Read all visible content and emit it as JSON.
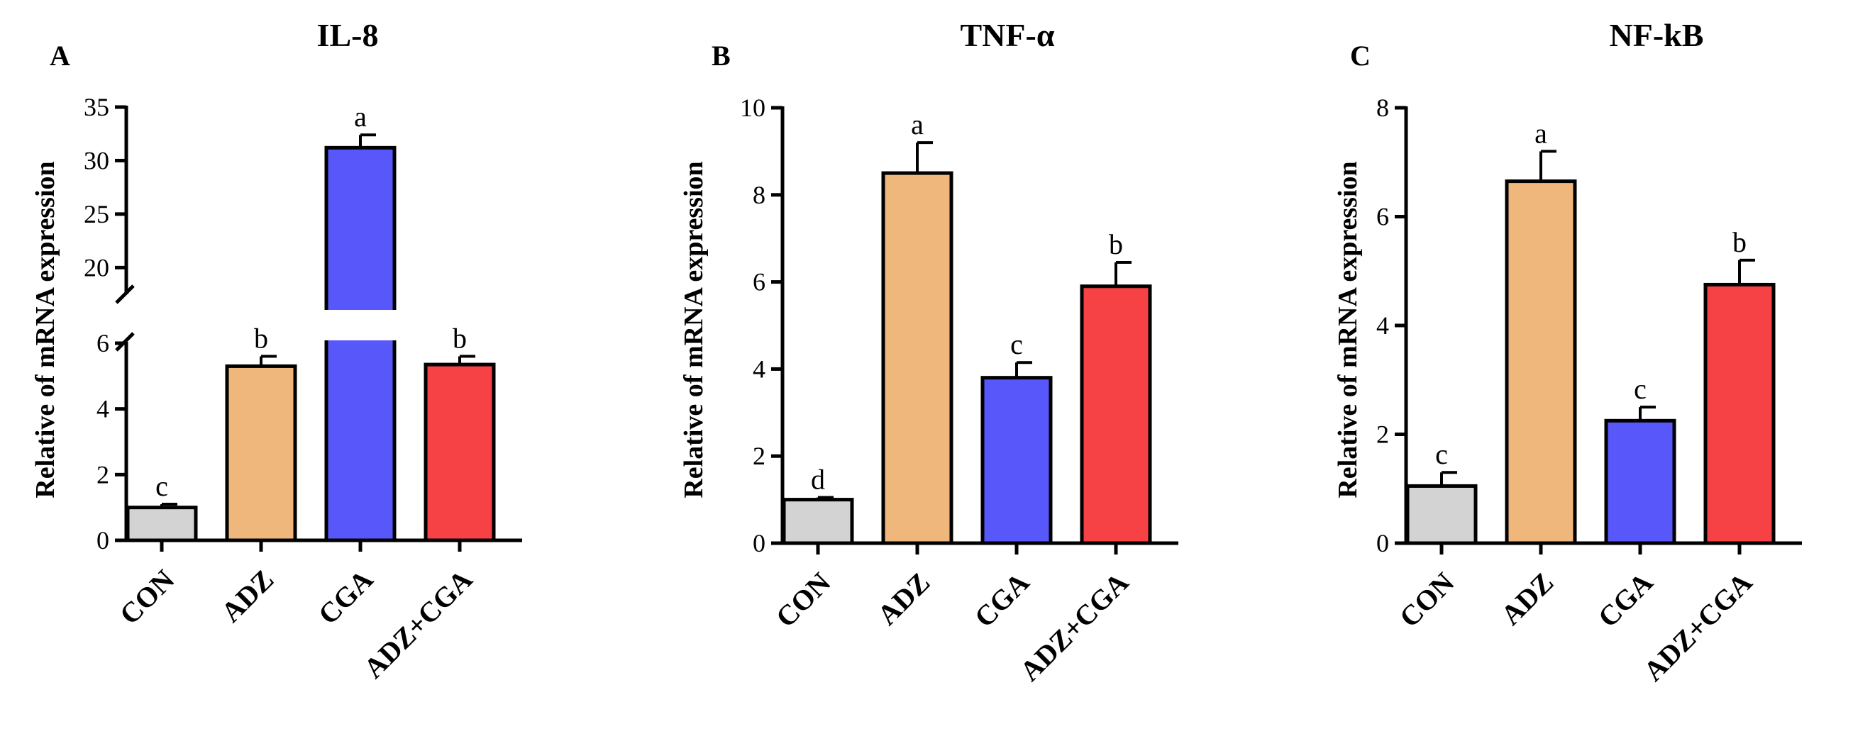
{
  "chart_data": [
    {
      "type": "bar",
      "panel": "A",
      "title": "IL-8",
      "ylabel": "Relative of mRNA expression",
      "categories": [
        "CON",
        "ADZ",
        "CGA",
        "ADZ+CGA"
      ],
      "values": [
        1.0,
        5.3,
        31.2,
        5.35
      ],
      "errors": [
        0.1,
        0.3,
        1.2,
        0.25
      ],
      "significance": [
        "c",
        "b",
        "a",
        "b"
      ],
      "colors": [
        "#d3d3d3",
        "#f0b77c",
        "#5757fa",
        "#f64244"
      ],
      "ylim": [
        0,
        35
      ],
      "axis_break": [
        6,
        18.5
      ],
      "yticks_lower": [
        "0",
        "2",
        "4",
        "6"
      ],
      "yticks_upper": [
        "20",
        "25",
        "30",
        "35"
      ]
    },
    {
      "type": "bar",
      "panel": "B",
      "title": "TNF-α",
      "ylabel": "Relative of mRNA expression",
      "categories": [
        "CON",
        "ADZ",
        "CGA",
        "ADZ+CGA"
      ],
      "values": [
        1.0,
        8.5,
        3.8,
        5.9
      ],
      "errors": [
        0.05,
        0.7,
        0.35,
        0.55
      ],
      "significance": [
        "d",
        "a",
        "c",
        "b"
      ],
      "colors": [
        "#d3d3d3",
        "#f0b77c",
        "#5757fa",
        "#f64244"
      ],
      "ylim": [
        0,
        10
      ],
      "yticks": [
        "0",
        "2",
        "4",
        "6",
        "8",
        "10"
      ]
    },
    {
      "type": "bar",
      "panel": "C",
      "title": "NF-kB",
      "ylabel": "Relative of mRNA expression",
      "categories": [
        "CON",
        "ADZ",
        "CGA",
        "ADZ+CGA"
      ],
      "values": [
        1.05,
        6.65,
        2.25,
        4.75
      ],
      "errors": [
        0.25,
        0.55,
        0.25,
        0.45
      ],
      "significance": [
        "c",
        "a",
        "c",
        "b"
      ],
      "colors": [
        "#d3d3d3",
        "#f0b77c",
        "#5757fa",
        "#f64244"
      ],
      "ylim": [
        0,
        8
      ],
      "yticks": [
        "0",
        "2",
        "4",
        "6",
        "8"
      ]
    }
  ]
}
